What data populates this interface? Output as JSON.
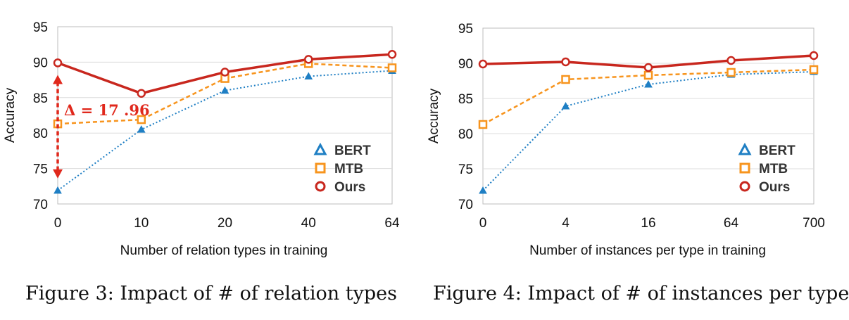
{
  "colors": {
    "bert": "#1f7fc4",
    "mtb": "#f7941d",
    "ours": "#c8271e",
    "grid": "#dcdcdc",
    "annotation": "#e0281c"
  },
  "chart_data": [
    {
      "type": "line",
      "caption": "Figure 3: Impact of # of relation types",
      "xlabel": "Number of relation types in training",
      "ylabel": "Accuracy",
      "categories": [
        "0",
        "10",
        "20",
        "40",
        "64"
      ],
      "ylim": [
        70,
        95
      ],
      "yticks": [
        "70",
        "75",
        "80",
        "85",
        "90",
        "95"
      ],
      "grid": "horizontal",
      "legend": "bottom-right",
      "series": [
        {
          "name": "BERT",
          "key": "bert",
          "style": "dotted",
          "marker": "triangle",
          "values": [
            71.9,
            80.5,
            86.0,
            88.0,
            88.8
          ]
        },
        {
          "name": "MTB",
          "key": "mtb",
          "style": "dashed",
          "marker": "square",
          "values": [
            81.3,
            81.9,
            87.7,
            89.8,
            89.2
          ]
        },
        {
          "name": "Ours",
          "key": "ours",
          "style": "solid",
          "marker": "circle",
          "values": [
            89.9,
            85.6,
            88.6,
            90.4,
            91.1
          ]
        }
      ],
      "annotation": {
        "text": "Δ = 17 .96",
        "category": "0",
        "from": 73.8,
        "to": 88.0
      }
    },
    {
      "type": "line",
      "caption": "Figure 4: Impact of # of instances per type",
      "xlabel": "Number of instances per type in training",
      "ylabel": "Accuracy",
      "categories": [
        "0",
        "4",
        "16",
        "64",
        "700"
      ],
      "ylim": [
        70,
        95
      ],
      "yticks": [
        "70",
        "75",
        "80",
        "85",
        "90",
        "95"
      ],
      "grid": "horizontal",
      "legend": "bottom-right",
      "series": [
        {
          "name": "BERT",
          "key": "bert",
          "style": "dotted",
          "marker": "triangle",
          "values": [
            71.9,
            83.9,
            87.0,
            88.4,
            88.8
          ]
        },
        {
          "name": "MTB",
          "key": "mtb",
          "style": "dashed",
          "marker": "square",
          "values": [
            81.3,
            87.7,
            88.3,
            88.7,
            89.1
          ]
        },
        {
          "name": "Ours",
          "key": "ours",
          "style": "solid",
          "marker": "circle",
          "values": [
            89.9,
            90.2,
            89.4,
            90.4,
            91.1
          ]
        }
      ]
    }
  ]
}
